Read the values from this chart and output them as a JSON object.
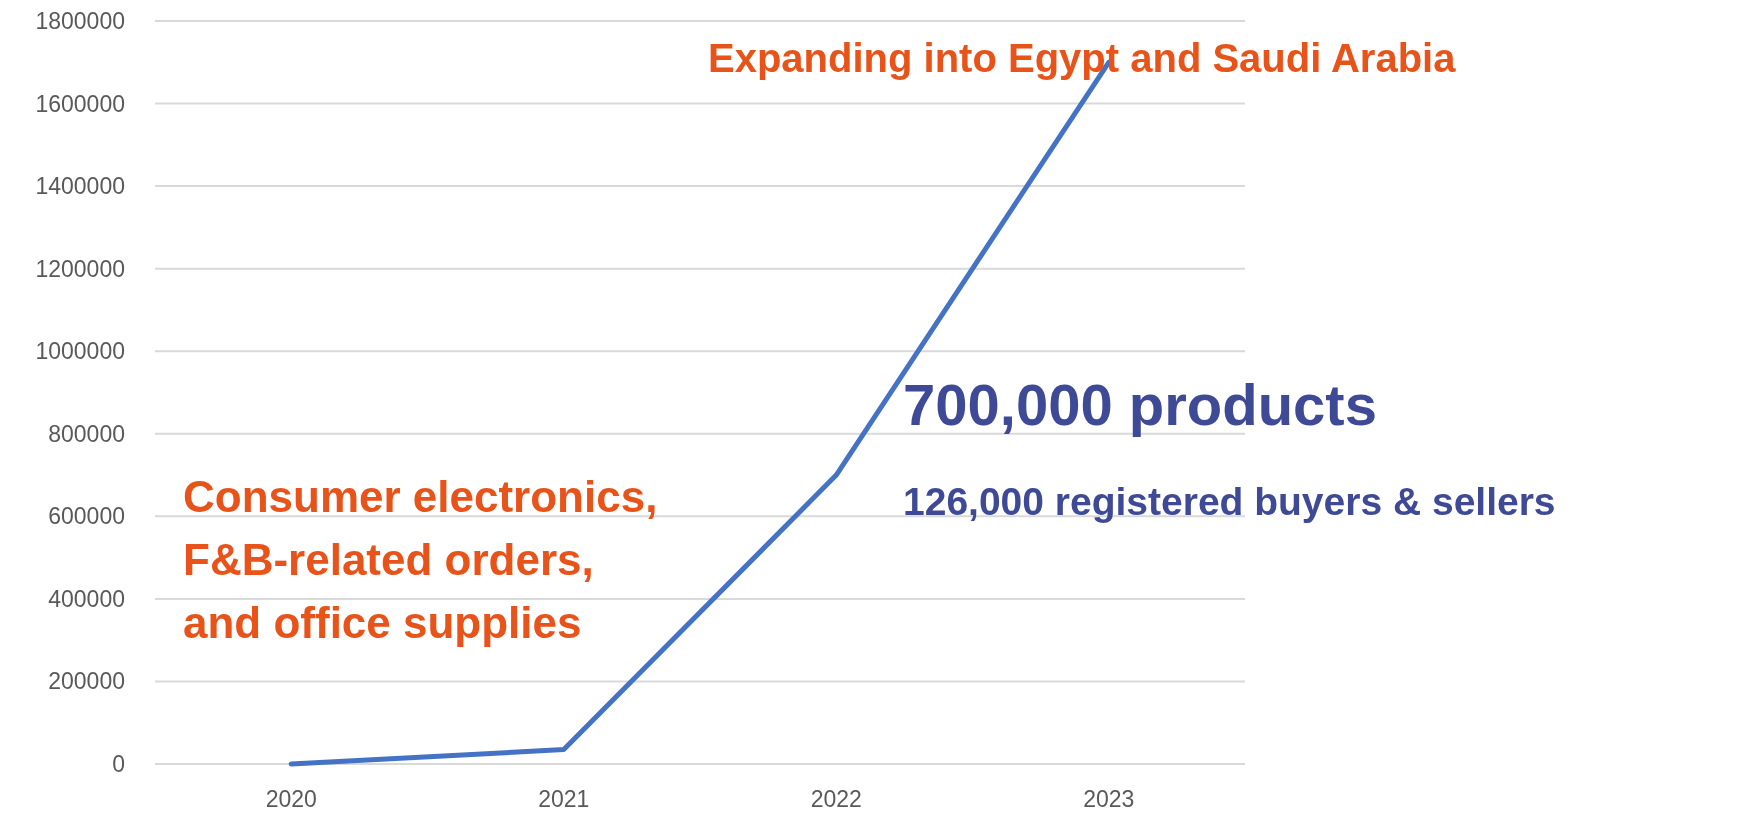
{
  "chart_data": {
    "type": "line",
    "categories": [
      "2020",
      "2021",
      "2022",
      "2023"
    ],
    "series": [
      {
        "color": "#4472c4",
        "values": [
          0,
          35000,
          700000,
          1700000
        ]
      }
    ],
    "ylim": [
      0,
      1800000
    ],
    "yticks": [
      0,
      200000,
      400000,
      600000,
      800000,
      1000000,
      1200000,
      1400000,
      1600000,
      1800000
    ],
    "grid": "y",
    "marker": "none",
    "line_style": "solid",
    "annotations": [
      "Expanding into Egypt and Saudi Arabia",
      "Consumer electronics,\nF&B-related orders,\nand office supplies",
      "700,000 products",
      "126,000 registered buyers & sellers"
    ]
  }
}
